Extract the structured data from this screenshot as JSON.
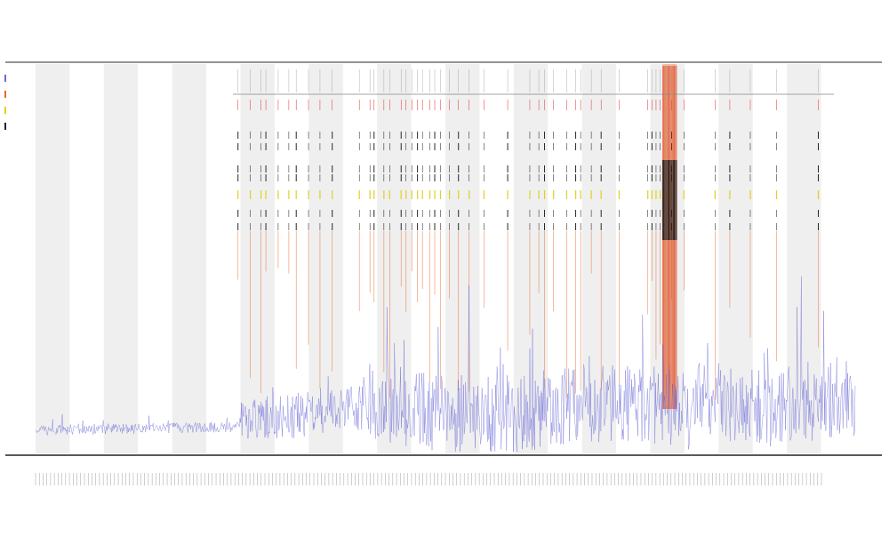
{
  "chart_data": {
    "type": "line",
    "title": "",
    "subtitle_1": "",
    "subtitle_2": "",
    "xlabel": "",
    "ylabel": "",
    "legend": {
      "placement": "top-left",
      "entries": [
        {
          "name": "",
          "color": "#6a6ad8"
        },
        {
          "name": "",
          "color": "#e8682a"
        },
        {
          "name": "",
          "color": "#e0d020"
        },
        {
          "name": "",
          "color": "#222222"
        }
      ]
    },
    "event_track_label": "",
    "event_track_sublabel": "",
    "n_bands": 24,
    "n_points": 1200,
    "grid": false,
    "series": [
      {
        "name": "",
        "color": "#6a6ad8"
      }
    ],
    "event_positions": [
      0.247,
      0.262,
      0.275,
      0.281,
      0.296,
      0.309,
      0.318,
      0.333,
      0.347,
      0.362,
      0.395,
      0.408,
      0.413,
      0.425,
      0.432,
      0.446,
      0.452,
      0.459,
      0.466,
      0.472,
      0.481,
      0.487,
      0.494,
      0.505,
      0.516,
      0.529,
      0.547,
      0.576,
      0.603,
      0.614,
      0.621,
      0.632,
      0.648,
      0.659,
      0.665,
      0.678,
      0.69,
      0.712,
      0.747,
      0.752,
      0.757,
      0.762,
      0.776,
      0.791,
      0.829,
      0.847,
      0.872,
      0.904,
      0.955
    ],
    "highlight": {
      "start": 0.765,
      "end": 0.782,
      "color": "#e8682a"
    },
    "x_tick_count": 210
  }
}
